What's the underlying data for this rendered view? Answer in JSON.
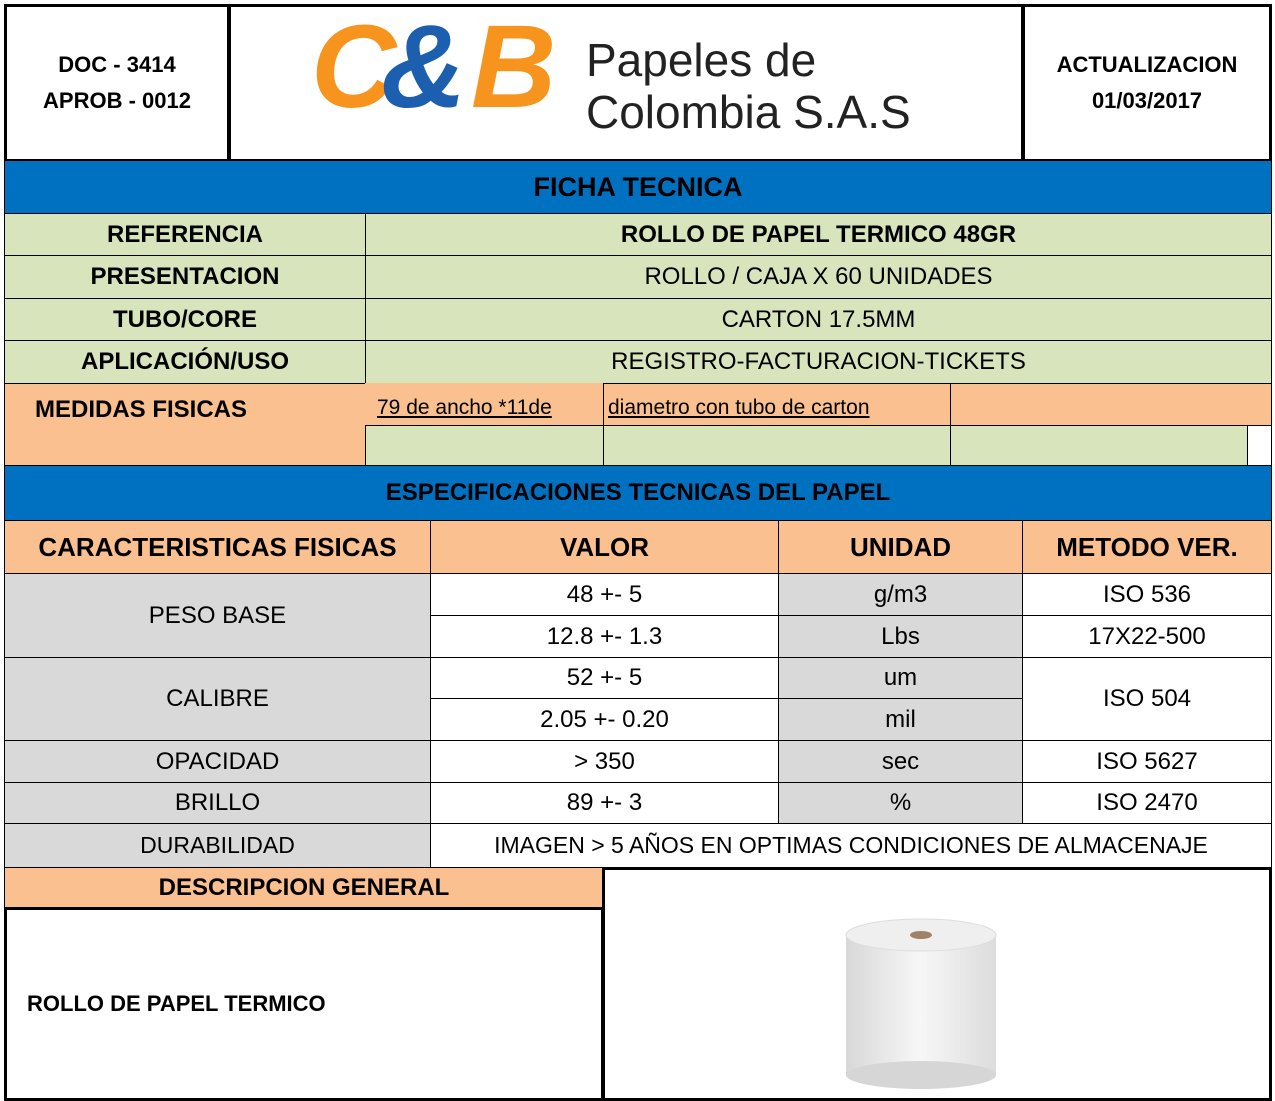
{
  "header": {
    "doc": "DOC - 3414",
    "aprob": "APROB - 0012",
    "logo": {
      "c": "C",
      "amp": "&",
      "b": "B",
      "line1": "Papeles de",
      "line2": "Colombia S.A.S"
    },
    "update_label": "ACTUALIZACION",
    "update_date": "01/03/2017"
  },
  "ficha": {
    "title": "FICHA TECNICA",
    "rows": [
      [
        "REFERENCIA",
        "ROLLO DE PAPEL TERMICO 48GR"
      ],
      [
        "PRESENTACION",
        "ROLLO / CAJA X 60 UNIDADES"
      ],
      [
        "TUBO/CORE",
        "CARTON 17.5MM"
      ],
      [
        "APLICACIÓN/USO",
        "REGISTRO-FACTURACION-TICKETS"
      ]
    ],
    "medidas": {
      "label": "MEDIDAS FISICAS",
      "parts": [
        "79 de ancho *11de",
        "diametro  con tubo de carton"
      ]
    }
  },
  "specs": {
    "title": "ESPECIFICACIONES TECNICAS DEL PAPEL",
    "headers": [
      "CARACTERISTICAS FISICAS",
      "VALOR",
      "UNIDAD",
      "METODO VER."
    ],
    "peso_base": {
      "label": "PESO BASE",
      "rows": [
        [
          "48 +- 5",
          "g/m3",
          "ISO 536"
        ],
        [
          "12.8 +- 1.3",
          "Lbs",
          "17X22-500"
        ]
      ]
    },
    "calibre": {
      "label": "CALIBRE",
      "rows": [
        [
          "52 +- 5",
          "um"
        ],
        [
          "2.05 +- 0.20",
          "mil"
        ]
      ],
      "method": "ISO 504"
    },
    "opacidad": [
      "OPACIDAD",
      "> 350",
      "sec",
      "ISO 5627"
    ],
    "brillo": [
      "BRILLO",
      "89 +- 3",
      "%",
      "ISO 2470"
    ],
    "durabilidad": [
      "DURABILIDAD",
      "IMAGEN > 5 AÑOS EN OPTIMAS CONDICIONES DE ALMACENAJE"
    ]
  },
  "description": {
    "title": "DESCRIPCION GENERAL",
    "text": "ROLLO DE PAPEL TERMICO"
  }
}
